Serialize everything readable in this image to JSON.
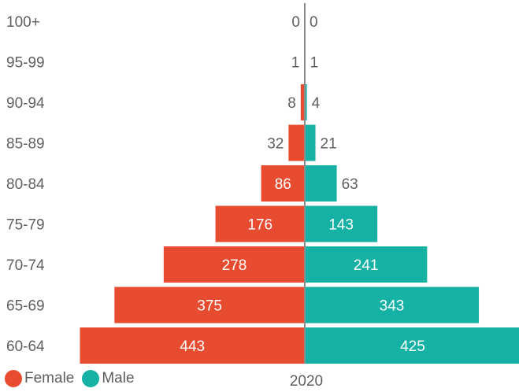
{
  "chart_data": {
    "type": "bar",
    "subtype": "population-pyramid",
    "categories": [
      "100+",
      "95-99",
      "90-94",
      "85-89",
      "80-84",
      "75-79",
      "70-74",
      "65-69",
      "60-64"
    ],
    "series": [
      {
        "name": "Female",
        "color": "#e84c30",
        "values": [
          0,
          1,
          8,
          32,
          86,
          176,
          278,
          375,
          443
        ]
      },
      {
        "name": "Male",
        "color": "#14b1a4",
        "values": [
          0,
          1,
          4,
          21,
          63,
          143,
          241,
          343,
          425
        ]
      }
    ],
    "xlabel": "2020",
    "legend_position": "bottom-left",
    "axis_color": "#8c8c8c"
  },
  "legend": {
    "female_label": "Female",
    "male_label": "Male"
  }
}
